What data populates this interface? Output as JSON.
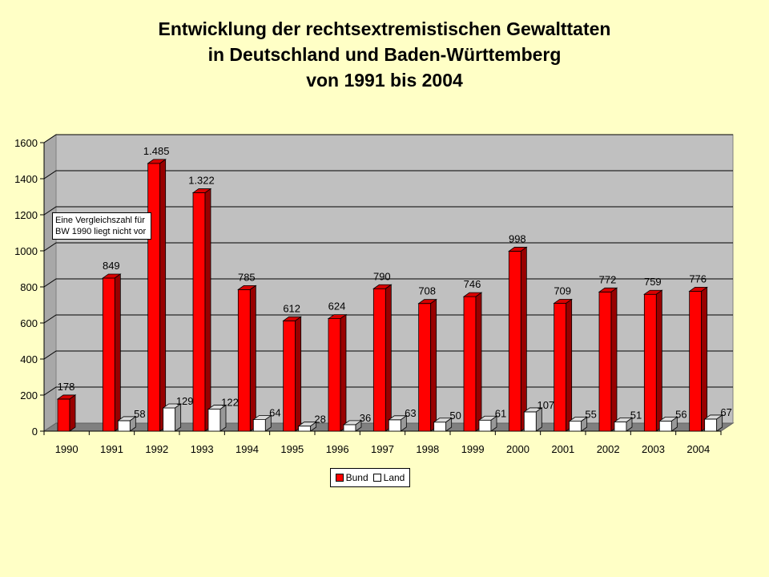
{
  "title_lines": [
    "Entwicklung der rechtsextremistischen Gewalttaten",
    "in Deutschland und Baden-Württemberg",
    "von 1991 bis 2004"
  ],
  "note": {
    "line1": "Eine Vergleichszahl für",
    "line2": "BW 1990 liegt nicht vor"
  },
  "colors": {
    "bund": "#FF0000",
    "land": "#FFFFFF",
    "plot_background": "#C0C0C0",
    "floor": "#808080"
  },
  "chart_data": {
    "type": "bar",
    "categories": [
      "1990",
      "1991",
      "1992",
      "1993",
      "1994",
      "1995",
      "1996",
      "1997",
      "1998",
      "1999",
      "2000",
      "2001",
      "2002",
      "2003",
      "2004"
    ],
    "series": [
      {
        "name": "Bund",
        "values": [
          178,
          849,
          1485,
          1322,
          785,
          612,
          624,
          790,
          708,
          746,
          998,
          709,
          772,
          759,
          776
        ],
        "labels": [
          "178",
          "849",
          "1.485",
          "1.322",
          "785",
          "612",
          "624",
          "790",
          "708",
          "746",
          "998",
          "709",
          "772",
          "759",
          "776"
        ]
      },
      {
        "name": "Land",
        "values": [
          null,
          58,
          129,
          122,
          64,
          28,
          36,
          63,
          50,
          61,
          107,
          55,
          51,
          56,
          67
        ],
        "labels": [
          "",
          "58",
          "129",
          "122",
          "64",
          "28",
          "36",
          "63",
          "50",
          "61",
          "107",
          "55",
          "51",
          "56",
          "67"
        ]
      }
    ],
    "ylim": [
      0,
      1600
    ],
    "yticks": [
      "0",
      "200",
      "400",
      "600",
      "800",
      "1000",
      "1200",
      "1400",
      "1600"
    ],
    "grid": true,
    "legend_position": "bottom"
  }
}
